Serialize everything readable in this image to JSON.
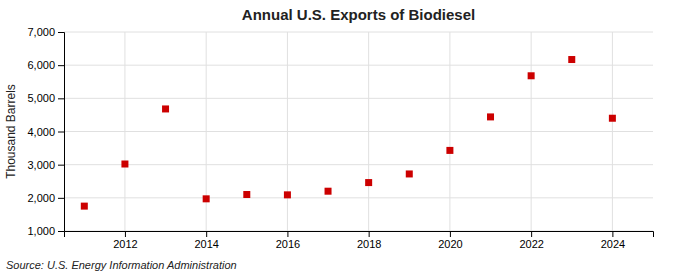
{
  "chart_data": {
    "type": "scatter",
    "title": "Annual U.S. Exports of Biodiesel",
    "y_label": "Thousand Barrels",
    "annotation": "Source: U.S. Energy Information Administration",
    "x": [
      2011,
      2012,
      2013,
      2014,
      2015,
      2016,
      2017,
      2018,
      2019,
      2020,
      2021,
      2022,
      2023,
      2024
    ],
    "values": [
      1750,
      3020,
      4680,
      1970,
      2100,
      2090,
      2200,
      2460,
      2720,
      3430,
      4440,
      5680,
      6170,
      4400
    ],
    "color": "#CC0000",
    "marker": "square",
    "grid": true,
    "xlim": [
      2010.5,
      2025
    ],
    "xticks": [
      2012,
      2014,
      2016,
      2018,
      2020,
      2022,
      2024
    ],
    "ylim": [
      1000,
      7000
    ],
    "yticks": [
      {
        "value": 1000,
        "label": "1,000"
      },
      {
        "value": 2000,
        "label": "2,000"
      },
      {
        "value": 3000,
        "label": "3,000"
      },
      {
        "value": 4000,
        "label": "4,000"
      },
      {
        "value": 5000,
        "label": "5,000"
      },
      {
        "value": 6000,
        "label": "6,000"
      },
      {
        "value": 7000,
        "label": "7,000"
      }
    ]
  }
}
